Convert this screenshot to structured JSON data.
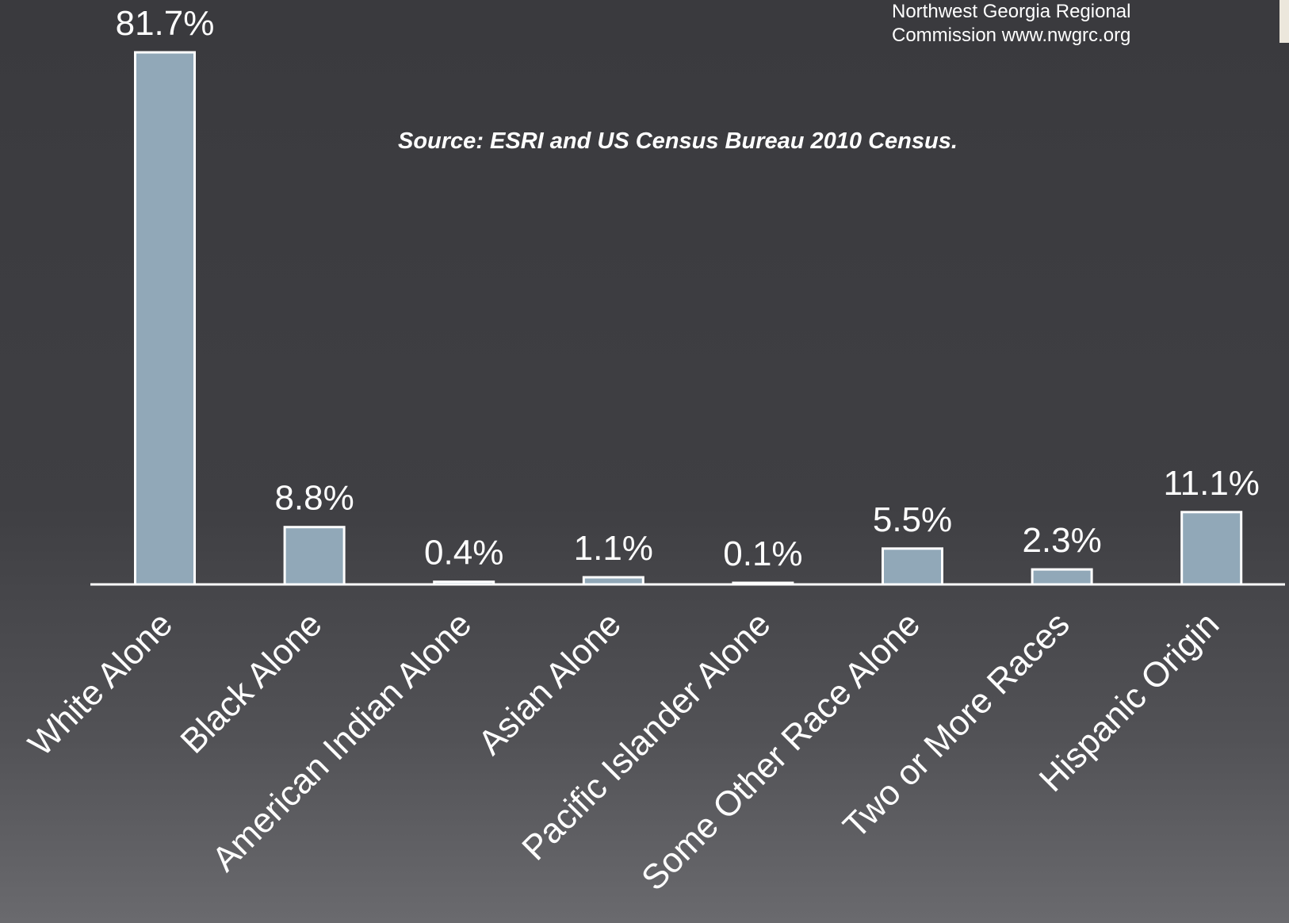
{
  "credit": {
    "line1": "Northwest Georgia Regional",
    "line2": "Commission  www.nwgrc.org"
  },
  "source_note": "Source: ESRI and US Census Bureau 2010 Census.",
  "colors": {
    "bar_fill": "#91a8b8",
    "bar_stroke": "#ffffff",
    "background_top": "#3a3a3e",
    "background_bottom": "#6a6a6e",
    "text": "#ffffff"
  },
  "chart_data": {
    "type": "bar",
    "title": "",
    "xlabel": "",
    "ylabel": "",
    "categories": [
      "White Alone",
      "Black Alone",
      "American Indian Alone",
      "Asian Alone",
      "Pacific Islander Alone",
      "Some Other Race Alone",
      "Two or More Races",
      "Hispanic Origin"
    ],
    "values": [
      81.7,
      8.8,
      0.4,
      1.1,
      0.1,
      5.5,
      2.3,
      11.1
    ],
    "value_labels": [
      "81.7%",
      "8.8%",
      "0.4%",
      "1.1%",
      "0.1%",
      "5.5%",
      "2.3%",
      "11.1%"
    ],
    "ylim": [
      0,
      81.7
    ],
    "grid": false,
    "legend": "none"
  }
}
